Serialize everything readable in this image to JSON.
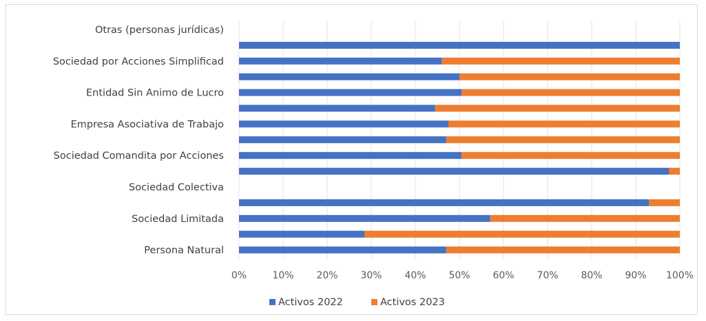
{
  "chart_data": {
    "type": "bar",
    "orientation": "horizontal",
    "stacked": "percent",
    "title": "",
    "xlabel": "",
    "ylabel": "",
    "xlim": [
      0,
      100
    ],
    "x_ticks": [
      "0%",
      "10%",
      "20%",
      "30%",
      "40%",
      "50%",
      "60%",
      "70%",
      "80%",
      "90%",
      "100%"
    ],
    "grid": "vertical",
    "legend_position": "bottom",
    "categories": [
      "Otras (personas jurídicas)",
      "",
      "Sociedad por Acciones Simplificad",
      "",
      "Entidad Sin Animo de Lucro",
      "",
      "Empresa Asociativa de Trabajo",
      "",
      "Sociedad Comandita por Acciones",
      "",
      "Sociedad Colectiva",
      "",
      "Sociedad Limitada",
      "",
      "Persona Natural"
    ],
    "series": [
      {
        "name": "Activos 2022",
        "color": "#4472c4",
        "values": [
          null,
          100,
          46,
          50,
          50.5,
          44.5,
          47.5,
          47,
          50.5,
          97.5,
          null,
          93,
          57,
          28.5,
          47
        ]
      },
      {
        "name": "Activos 2023",
        "color": "#ed7d31",
        "values": [
          null,
          0,
          54,
          50,
          49.5,
          55.5,
          52.5,
          53,
          49.5,
          2.5,
          null,
          7,
          43,
          71.5,
          53
        ]
      }
    ]
  }
}
